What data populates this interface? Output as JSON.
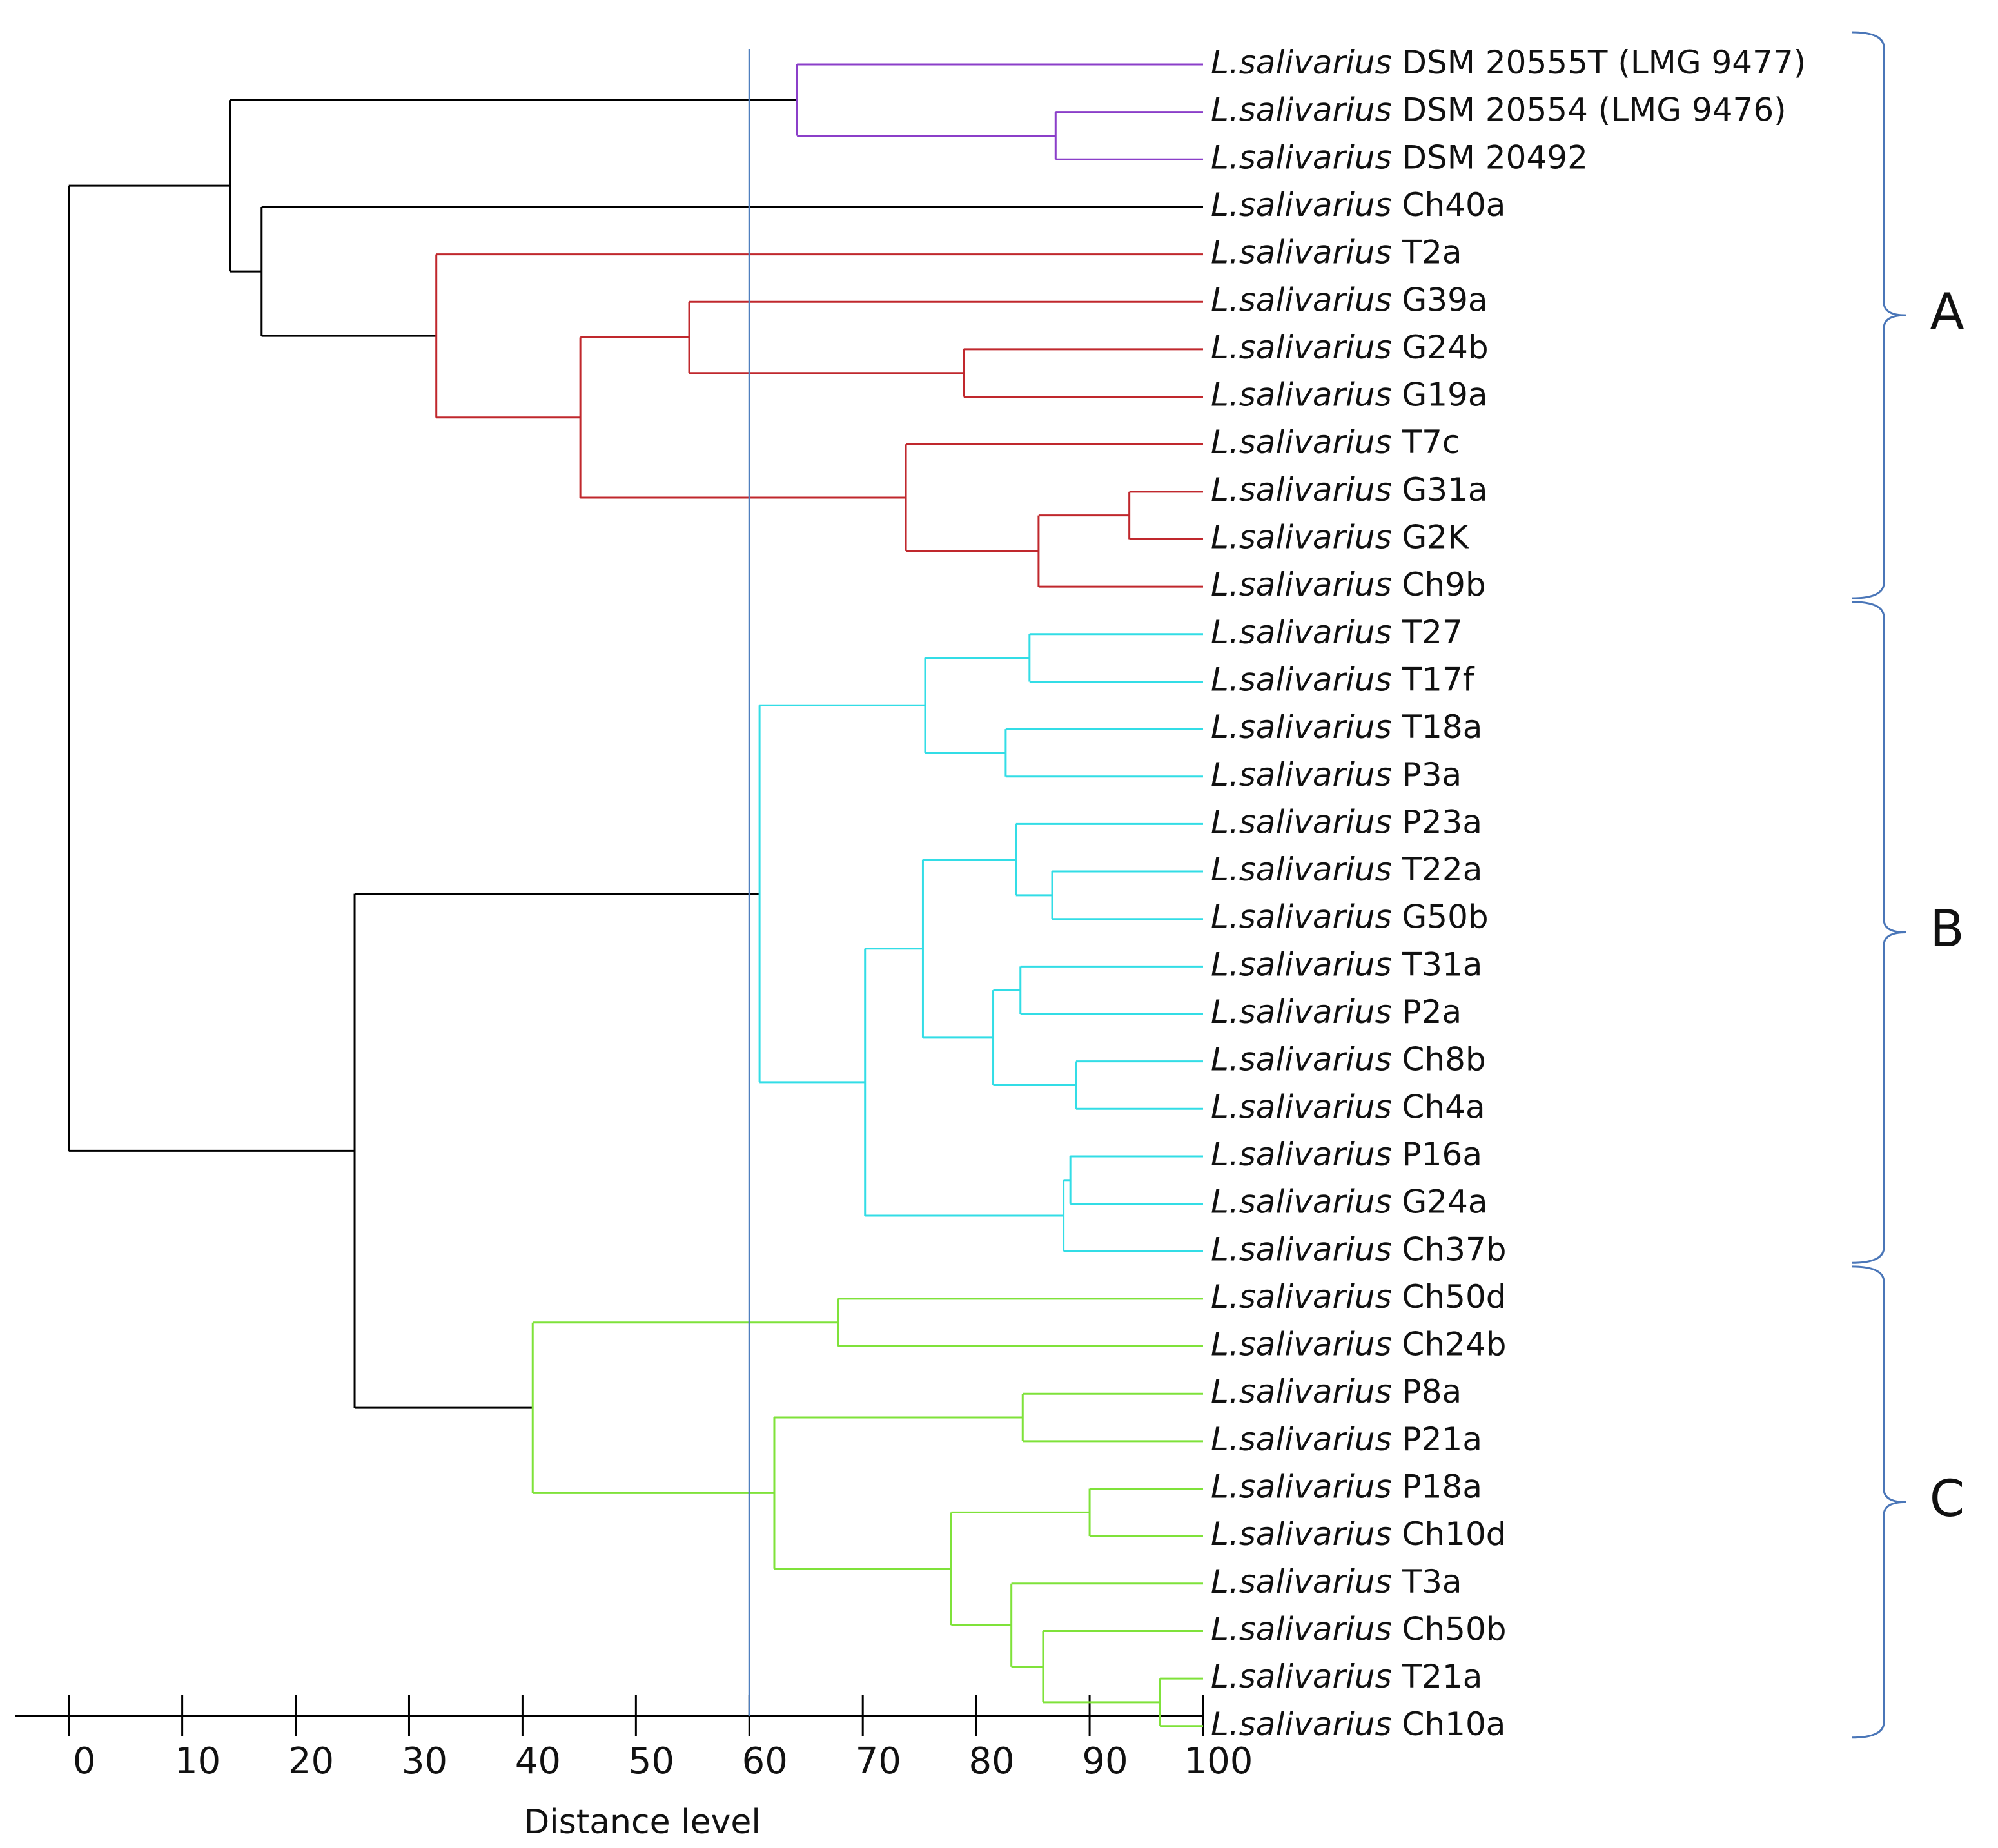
{
  "chart_data": {
    "type": "dendrogram",
    "x_label": "Distance level",
    "xlim": [
      -4.7,
      100
    ],
    "xticks": [
      0,
      10,
      20,
      30,
      40,
      50,
      60,
      70,
      80,
      90,
      100
    ],
    "cutoff": 60,
    "cutoff_color": "#4f7fbf",
    "bracket_color": "#4a76b8",
    "tree": {
      "height": 0,
      "color": "#000000",
      "children": [
        {
          "height": 14.2,
          "cluster": "A",
          "children": [
            {
              "height": 64.2,
              "color": "#8b3fc9",
              "children": [
                {
                  "genus": "L.salivarius",
                  "strain": "DSM 20555T (LMG 9477)"
                },
                {
                  "height": 87,
                  "children": [
                    {
                      "genus": "L.salivarius",
                      "strain": "DSM 20554 (LMG 9476)"
                    },
                    {
                      "genus": "L.salivarius",
                      "strain": "DSM 20492"
                    }
                  ]
                }
              ]
            },
            {
              "height": 17,
              "children": [
                {
                  "genus": "L.salivarius",
                  "strain": "Ch40a"
                },
                {
                  "height": 32.4,
                  "color": "#c0282d",
                  "children": [
                    {
                      "genus": "L.salivarius",
                      "strain": "T2a"
                    },
                    {
                      "height": 45.1,
                      "children": [
                        {
                          "height": 54.7,
                          "children": [
                            {
                              "genus": "L.salivarius",
                              "strain": "G39a"
                            },
                            {
                              "height": 78.9,
                              "children": [
                                {
                                  "genus": "L.salivarius",
                                  "strain": "G24b"
                                },
                                {
                                  "genus": "L.salivarius",
                                  "strain": "G19a"
                                }
                              ]
                            }
                          ]
                        },
                        {
                          "height": 73.8,
                          "children": [
                            {
                              "genus": "L.salivarius",
                              "strain": "T7c"
                            },
                            {
                              "height": 85.5,
                              "children": [
                                {
                                  "height": 93.5,
                                  "children": [
                                    {
                                      "genus": "L.salivarius",
                                      "strain": "G31a"
                                    },
                                    {
                                      "genus": "L.salivarius",
                                      "strain": "G2K"
                                    }
                                  ]
                                },
                                {
                                  "genus": "L.salivarius",
                                  "strain": "Ch9b"
                                }
                              ]
                            }
                          ]
                        }
                      ]
                    }
                  ]
                }
              ]
            }
          ]
        },
        {
          "height": 25.2,
          "children": [
            {
              "height": 60.9,
              "color": "#33dde6",
              "cluster": "B",
              "children": [
                {
                  "height": 75.5,
                  "children": [
                    {
                      "height": 84.7,
                      "children": [
                        {
                          "genus": "L.salivarius",
                          "strain": "T27"
                        },
                        {
                          "genus": "L.salivarius",
                          "strain": "T17f"
                        }
                      ]
                    },
                    {
                      "height": 82.6,
                      "children": [
                        {
                          "genus": "L.salivarius",
                          "strain": "T18a"
                        },
                        {
                          "genus": "L.salivarius",
                          "strain": "P3a"
                        }
                      ]
                    }
                  ]
                },
                {
                  "height": 70.2,
                  "children": [
                    {
                      "height": 75.3,
                      "children": [
                        {
                          "height": 83.5,
                          "children": [
                            {
                              "genus": "L.salivarius",
                              "strain": "P23a"
                            },
                            {
                              "height": 86.7,
                              "children": [
                                {
                                  "genus": "L.salivarius",
                                  "strain": "T22a"
                                },
                                {
                                  "genus": "L.salivarius",
                                  "strain": "G50b"
                                }
                              ]
                            }
                          ]
                        },
                        {
                          "height": 81.5,
                          "children": [
                            {
                              "height": 83.9,
                              "children": [
                                {
                                  "genus": "L.salivarius",
                                  "strain": "T31a"
                                },
                                {
                                  "genus": "L.salivarius",
                                  "strain": "P2a"
                                }
                              ]
                            },
                            {
                              "height": 88.8,
                              "children": [
                                {
                                  "genus": "L.salivarius",
                                  "strain": "Ch8b"
                                },
                                {
                                  "genus": "L.salivarius",
                                  "strain": "Ch4a"
                                }
                              ]
                            }
                          ]
                        }
                      ]
                    },
                    {
                      "height": 87.7,
                      "children": [
                        {
                          "height": 88.3,
                          "children": [
                            {
                              "genus": "L.salivarius",
                              "strain": "P16a"
                            },
                            {
                              "genus": "L.salivarius",
                              "strain": "G24a"
                            }
                          ]
                        },
                        {
                          "genus": "L.salivarius",
                          "strain": "Ch37b"
                        }
                      ]
                    }
                  ]
                }
              ]
            },
            {
              "height": 40.9,
              "color": "#7fe23a",
              "cluster": "C",
              "children": [
                {
                  "height": 67.8,
                  "children": [
                    {
                      "genus": "L.salivarius",
                      "strain": "Ch50d"
                    },
                    {
                      "genus": "L.salivarius",
                      "strain": "Ch24b"
                    }
                  ]
                },
                {
                  "height": 62.2,
                  "children": [
                    {
                      "height": 84.1,
                      "children": [
                        {
                          "genus": "L.salivarius",
                          "strain": "P8a"
                        },
                        {
                          "genus": "L.salivarius",
                          "strain": "P21a"
                        }
                      ]
                    },
                    {
                      "height": 77.8,
                      "children": [
                        {
                          "height": 90,
                          "children": [
                            {
                              "genus": "L.salivarius",
                              "strain": "P18a"
                            },
                            {
                              "genus": "L.salivarius",
                              "strain": "Ch10d"
                            }
                          ]
                        },
                        {
                          "height": 83.1,
                          "children": [
                            {
                              "genus": "L.salivarius",
                              "strain": "T3a"
                            },
                            {
                              "height": 85.9,
                              "children": [
                                {
                                  "genus": "L.salivarius",
                                  "strain": "Ch50b"
                                },
                                {
                                  "height": 96.2,
                                  "children": [
                                    {
                                      "genus": "L.salivarius",
                                      "strain": "T21a"
                                    },
                                    {
                                      "genus": "L.salivarius",
                                      "strain": "Ch10a"
                                    }
                                  ]
                                }
                              ]
                            }
                          ]
                        }
                      ]
                    }
                  ]
                }
              ]
            }
          ]
        }
      ]
    }
  }
}
